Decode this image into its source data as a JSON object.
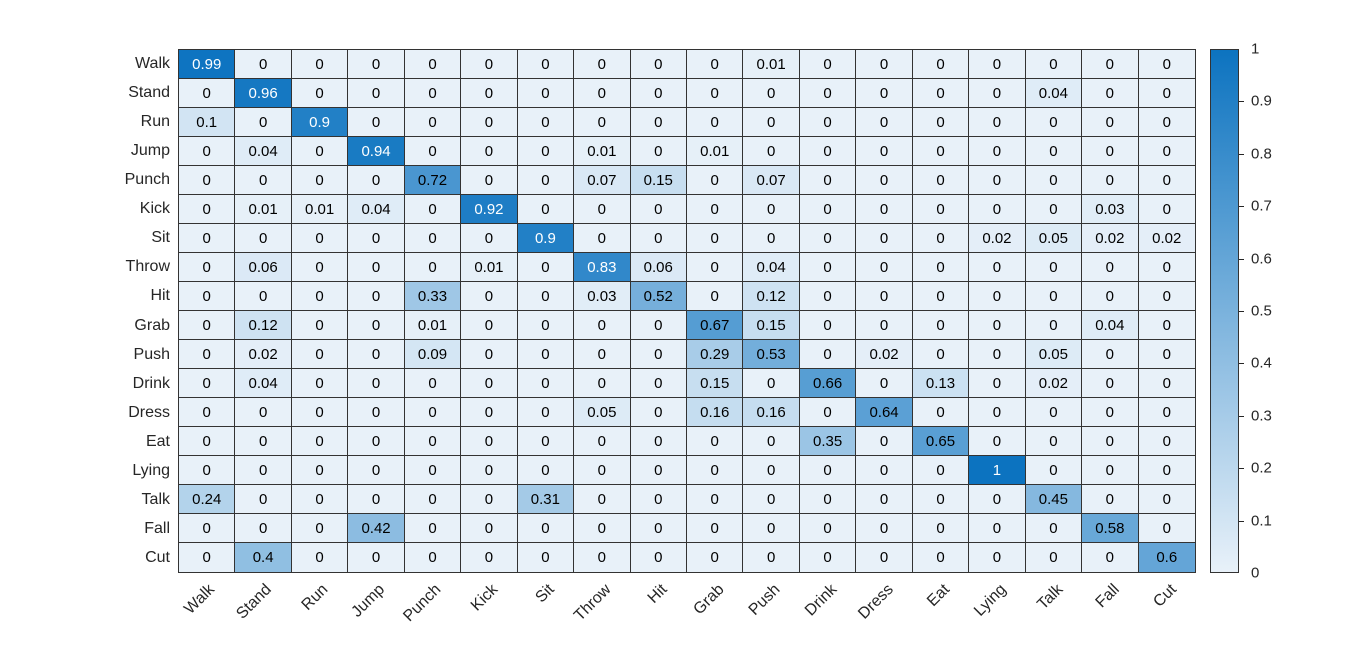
{
  "figure": {
    "background": "#ffffff",
    "axis_text_color": "#262626",
    "grid_line_color": "#333333"
  },
  "chart_data": {
    "type": "heatmap",
    "title": "",
    "xlabel": "",
    "ylabel": "",
    "x_categories": [
      "Walk",
      "Stand",
      "Run",
      "Jump",
      "Punch",
      "Kick",
      "Sit",
      "Throw",
      "Hit",
      "Grab",
      "Push",
      "Drink",
      "Dress",
      "Eat",
      "Lying",
      "Talk",
      "Fall",
      "Cut"
    ],
    "y_categories": [
      "Walk",
      "Stand",
      "Run",
      "Jump",
      "Punch",
      "Kick",
      "Sit",
      "Throw",
      "Hit",
      "Grab",
      "Push",
      "Drink",
      "Dress",
      "Eat",
      "Lying",
      "Talk",
      "Fall",
      "Cut"
    ],
    "matrix": [
      [
        0.99,
        0,
        0,
        0,
        0,
        0,
        0,
        0,
        0,
        0,
        0.01,
        0,
        0,
        0,
        0,
        0,
        0,
        0
      ],
      [
        0,
        0.96,
        0,
        0,
        0,
        0,
        0,
        0,
        0,
        0,
        0,
        0,
        0,
        0,
        0,
        0.04,
        0,
        0
      ],
      [
        0.1,
        0,
        0.9,
        0,
        0,
        0,
        0,
        0,
        0,
        0,
        0,
        0,
        0,
        0,
        0,
        0,
        0,
        0
      ],
      [
        0,
        0.04,
        0,
        0.94,
        0,
        0,
        0,
        0.01,
        0,
        0.01,
        0,
        0,
        0,
        0,
        0,
        0,
        0,
        0
      ],
      [
        0,
        0,
        0,
        0,
        0.72,
        0,
        0,
        0.07,
        0.15,
        0,
        0.07,
        0,
        0,
        0,
        0,
        0,
        0,
        0
      ],
      [
        0,
        0.01,
        0.01,
        0.04,
        0,
        0.92,
        0,
        0,
        0,
        0,
        0,
        0,
        0,
        0,
        0,
        0,
        0.03,
        0
      ],
      [
        0,
        0,
        0,
        0,
        0,
        0,
        0.9,
        0,
        0,
        0,
        0,
        0,
        0,
        0,
        0.02,
        0.05,
        0.02,
        0.02
      ],
      [
        0,
        0.06,
        0,
        0,
        0,
        0.01,
        0,
        0.83,
        0.06,
        0,
        0.04,
        0,
        0,
        0,
        0,
        0,
        0,
        0
      ],
      [
        0,
        0,
        0,
        0,
        0.33,
        0,
        0,
        0.03,
        0.52,
        0,
        0.12,
        0,
        0,
        0,
        0,
        0,
        0,
        0
      ],
      [
        0,
        0.12,
        0,
        0,
        0.01,
        0,
        0,
        0,
        0,
        0.67,
        0.15,
        0,
        0,
        0,
        0,
        0,
        0.04,
        0
      ],
      [
        0,
        0.02,
        0,
        0,
        0.09,
        0,
        0,
        0,
        0,
        0.29,
        0.53,
        0,
        0.02,
        0,
        0,
        0.05,
        0,
        0
      ],
      [
        0,
        0.04,
        0,
        0,
        0,
        0,
        0,
        0,
        0,
        0.15,
        0,
        0.66,
        0,
        0.13,
        0,
        0.02,
        0,
        0
      ],
      [
        0,
        0,
        0,
        0,
        0,
        0,
        0,
        0.05,
        0,
        0.16,
        0.16,
        0,
        0.64,
        0,
        0,
        0,
        0,
        0
      ],
      [
        0,
        0,
        0,
        0,
        0,
        0,
        0,
        0,
        0,
        0,
        0,
        0.35,
        0,
        0.65,
        0,
        0,
        0,
        0
      ],
      [
        0,
        0,
        0,
        0,
        0,
        0,
        0,
        0,
        0,
        0,
        0,
        0,
        0,
        0,
        1,
        0,
        0,
        0
      ],
      [
        0.24,
        0,
        0,
        0,
        0,
        0,
        0.31,
        0,
        0,
        0,
        0,
        0,
        0,
        0,
        0,
        0.45,
        0,
        0
      ],
      [
        0,
        0,
        0,
        0.42,
        0,
        0,
        0,
        0,
        0,
        0,
        0,
        0,
        0,
        0,
        0,
        0,
        0.58,
        0
      ],
      [
        0,
        0.4,
        0,
        0,
        0,
        0,
        0,
        0,
        0,
        0,
        0,
        0,
        0,
        0,
        0,
        0,
        0,
        0.6
      ]
    ],
    "colormap": {
      "low": "#e8f1f9",
      "high": "#0c73c0"
    },
    "cell_text_dark": "#000000",
    "cell_text_light": "#ffffff",
    "white_text_threshold": 0.8,
    "colorbar": {
      "min": 0,
      "max": 1,
      "ticks": [
        1,
        0.9,
        0.8,
        0.7,
        0.6,
        0.5,
        0.4,
        0.3,
        0.2,
        0.1,
        0
      ],
      "tick_labels": [
        "1",
        "0.9",
        "0.8",
        "0.7",
        "0.6",
        "0.5",
        "0.4",
        "0.3",
        "0.2",
        "0.1",
        "0"
      ],
      "position": "right"
    },
    "axis_ranges": {
      "value_min": 0,
      "value_max": 1
    },
    "grid_on": true,
    "legend": "none"
  }
}
